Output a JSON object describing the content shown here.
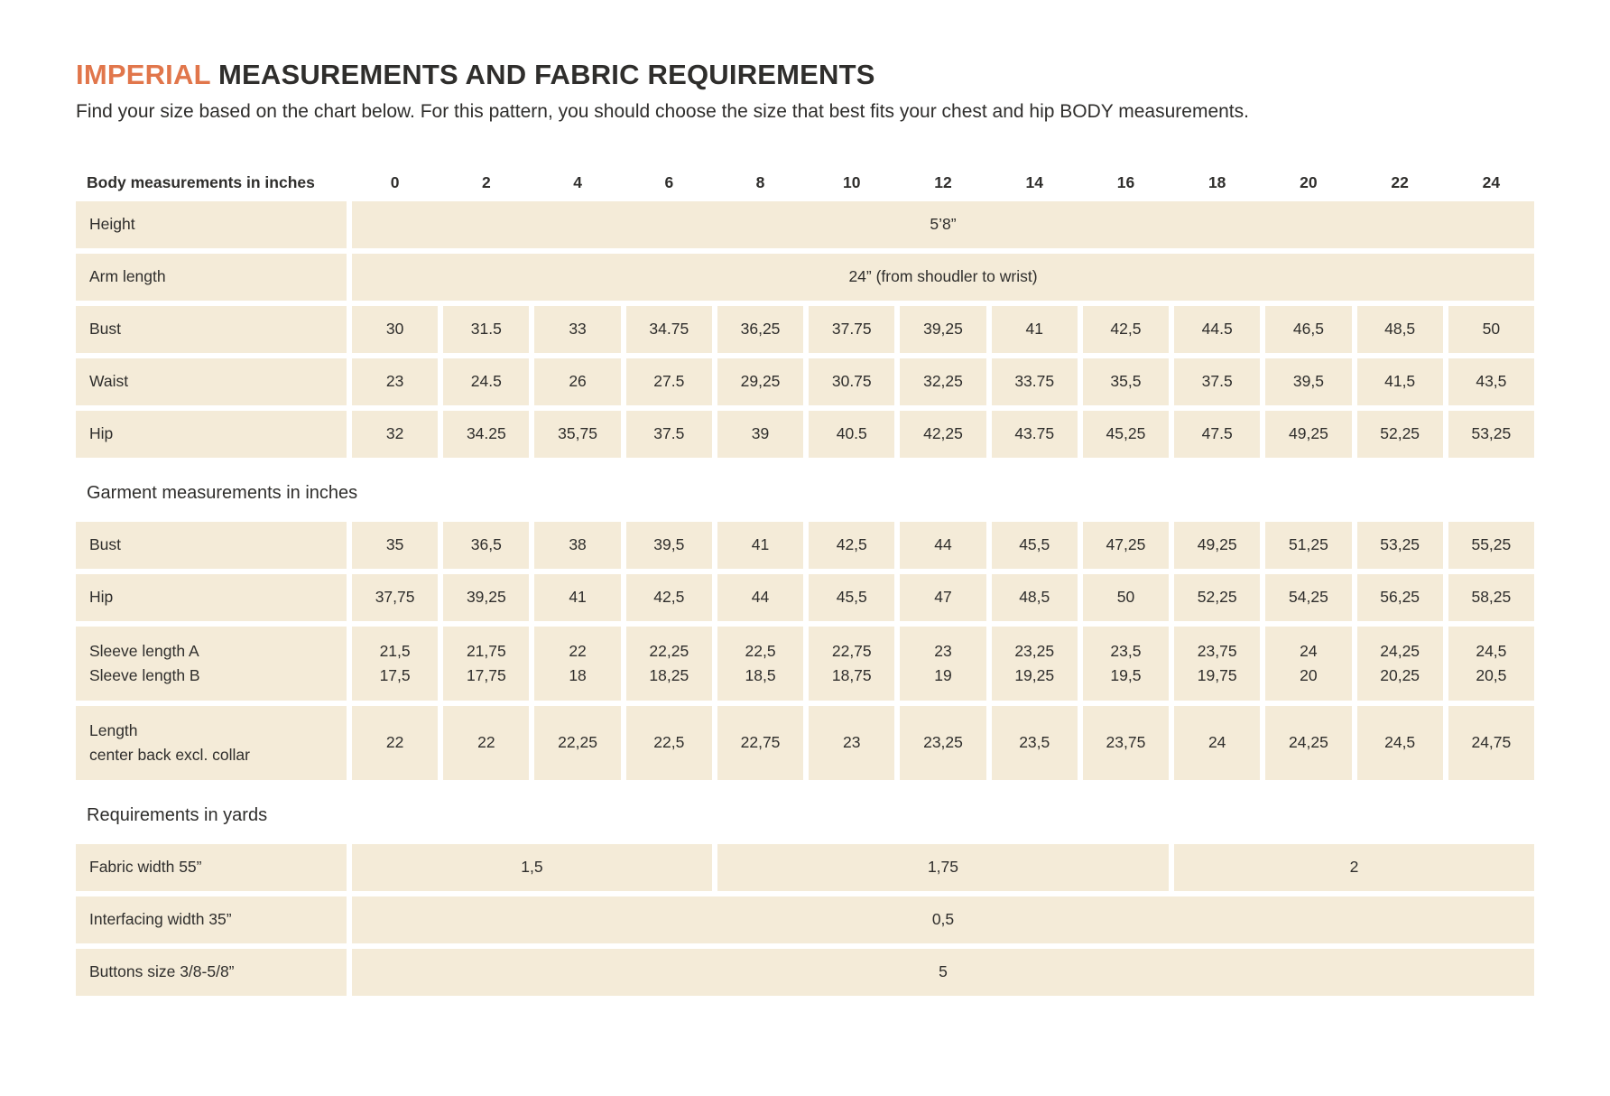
{
  "colors": {
    "accent": "#e1764b",
    "cell_bg": "#f4ebd8",
    "text": "#2f2e2c"
  },
  "page": {
    "title_highlight": "IMPERIAL",
    "title_rest": " MEASUREMENTS AND FABRIC REQUIREMENTS",
    "subtitle": "Find your size based on the chart below. For this pattern, you should choose the size that best fits your chest and hip BODY measurements."
  },
  "table": {
    "header_label": "Body measurements in inches",
    "sizes": [
      "0",
      "2",
      "4",
      "6",
      "8",
      "10",
      "12",
      "14",
      "16",
      "18",
      "20",
      "22",
      "24"
    ],
    "sections": [
      {
        "rows": [
          {
            "label": "Height",
            "value": "5’8”"
          },
          {
            "label": "Arm length",
            "value": "24” (from shoudler to wrist)"
          },
          {
            "label": "Bust",
            "values": [
              "30",
              "31.5",
              "33",
              "34.75",
              "36,25",
              "37.75",
              "39,25",
              "41",
              "42,5",
              "44.5",
              "46,5",
              "48,5",
              "50"
            ]
          },
          {
            "label": "Waist",
            "values": [
              "23",
              "24.5",
              "26",
              "27.5",
              "29,25",
              "30.75",
              "32,25",
              "33.75",
              "35,5",
              "37.5",
              "39,5",
              "41,5",
              "43,5"
            ]
          },
          {
            "label": "Hip",
            "values": [
              "32",
              "34.25",
              "35,75",
              "37.5",
              "39",
              "40.5",
              "42,25",
              "43.75",
              "45,25",
              "47.5",
              "49,25",
              "52,25",
              "53,25"
            ]
          }
        ]
      },
      {
        "title": "Garment measurements in inches",
        "rows": [
          {
            "label": "Bust",
            "values": [
              "35",
              "36,5",
              "38",
              "39,5",
              "41",
              "42,5",
              "44",
              "45,5",
              "47,25",
              "49,25",
              "51,25",
              "53,25",
              "55,25"
            ]
          },
          {
            "label": "Hip",
            "values": [
              "37,75",
              "39,25",
              "41",
              "42,5",
              "44",
              "45,5",
              "47",
              "48,5",
              "50",
              "52,25",
              "54,25",
              "56,25",
              "58,25"
            ]
          },
          {
            "label": "Sleeve length A",
            "label2": "Sleeve length B",
            "values": [
              "21,5",
              "21,75",
              "22",
              "22,25",
              "22,5",
              "22,75",
              "23",
              "23,25",
              "23,5",
              "23,75",
              "24",
              "24,25",
              "24,5"
            ],
            "values2": [
              "17,5",
              "17,75",
              "18",
              "18,25",
              "18,5",
              "18,75",
              "19",
              "19,25",
              "19,5",
              "19,75",
              "20",
              "20,25",
              "20,5"
            ]
          },
          {
            "label": "Length",
            "label2": "center back excl. collar",
            "values": [
              "22",
              "22",
              "22,25",
              "22,5",
              "22,75",
              "23",
              "23,25",
              "23,5",
              "23,75",
              "24",
              "24,25",
              "24,5",
              "24,75"
            ]
          }
        ]
      },
      {
        "title": "Requirements in yards",
        "rows": [
          {
            "label": "Fabric width 55”",
            "groups": [
              {
                "value": "1,5",
                "span": 4
              },
              {
                "value": "1,75",
                "span": 5
              },
              {
                "value": "2",
                "span": 4
              }
            ]
          },
          {
            "label": "Interfacing width 35”",
            "value": "0,5"
          },
          {
            "label": "Buttons size 3/8-5/8”",
            "value": "5"
          }
        ]
      }
    ]
  }
}
